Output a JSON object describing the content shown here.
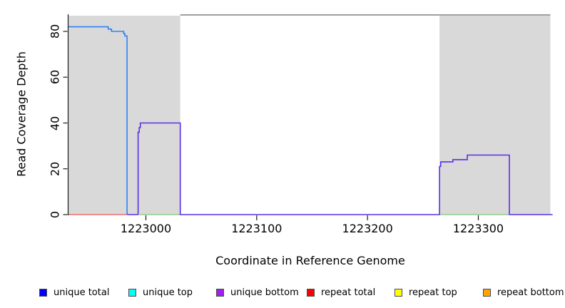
{
  "figure": {
    "xlabel": "Coordinate in Reference Genome",
    "ylabel": "Read Coverage Depth"
  },
  "chart_data": {
    "type": "line",
    "subtype": "step-coverage",
    "title": "",
    "xlabel": "Coordinate in Reference Genome",
    "ylabel": "Read Coverage Depth",
    "xlim": [
      1222930,
      1223367
    ],
    "ylim": [
      0,
      87.5
    ],
    "grid": false,
    "x_ticks": [
      {
        "value": 1223000,
        "label": "1223000"
      },
      {
        "value": 1223100,
        "label": "1223100"
      },
      {
        "value": 1223200,
        "label": "1223200"
      },
      {
        "value": 1223300,
        "label": "1223300"
      }
    ],
    "y_ticks": [
      {
        "value": 0,
        "label": "0"
      },
      {
        "value": 20,
        "label": "20"
      },
      {
        "value": 40,
        "label": "40"
      },
      {
        "value": 60,
        "label": "60"
      },
      {
        "value": 80,
        "label": "80"
      }
    ],
    "shaded_regions": [
      {
        "name": "left-gray-region",
        "x1": 1222930,
        "x2": 1223031,
        "color": "#d9d9d9"
      },
      {
        "name": "right-gray-region",
        "x1": 1223265,
        "x2": 1223365,
        "color": "#d9d9d9"
      }
    ],
    "series": [
      {
        "name": "top-clip-bar-gray",
        "color": "#8a8a8a",
        "width": 1.6,
        "points": [
          [
            1223031,
            87.2
          ],
          [
            1223365,
            87.2
          ]
        ]
      },
      {
        "name": "repeat-total-baseline-red",
        "color": "#f05555",
        "width": 1.2,
        "points": [
          [
            1222930,
            0
          ],
          [
            1222983,
            0
          ]
        ]
      },
      {
        "name": "baseline-green-left",
        "color": "#7cc87c",
        "width": 1.2,
        "points": [
          [
            1222994,
            0
          ],
          [
            1223031,
            0
          ]
        ]
      },
      {
        "name": "baseline-green-right",
        "color": "#7cc87c",
        "width": 1.2,
        "points": [
          [
            1223265,
            0
          ],
          [
            1223328,
            0
          ]
        ]
      },
      {
        "name": "unique-coverage-blue",
        "color": "#2d82f7",
        "width": 1.6,
        "points": [
          [
            1222930,
            82
          ],
          [
            1222966,
            82
          ],
          [
            1222966,
            81
          ],
          [
            1222969,
            81
          ],
          [
            1222969,
            80
          ],
          [
            1222980,
            80
          ],
          [
            1222980,
            79
          ],
          [
            1222981,
            79
          ],
          [
            1222981,
            78
          ],
          [
            1222983,
            78
          ],
          [
            1222983,
            0
          ]
        ]
      },
      {
        "name": "unique-bottom-purple",
        "color": "#5b2ee8",
        "width": 1.6,
        "points": [
          [
            1222983,
            0
          ],
          [
            1222993,
            0
          ],
          [
            1222993,
            36
          ],
          [
            1222994,
            36
          ],
          [
            1222994,
            38
          ],
          [
            1222995,
            38
          ],
          [
            1222995,
            40
          ],
          [
            1223031,
            40
          ],
          [
            1223031,
            0
          ],
          [
            1223265,
            0
          ],
          [
            1223265,
            21
          ],
          [
            1223266,
            21
          ],
          [
            1223266,
            23
          ],
          [
            1223277,
            23
          ],
          [
            1223277,
            24
          ],
          [
            1223290,
            24
          ],
          [
            1223290,
            26
          ],
          [
            1223328,
            26
          ],
          [
            1223328,
            0
          ],
          [
            1223367,
            0
          ]
        ]
      }
    ],
    "legend": {
      "position": "bottom",
      "entries": [
        {
          "label": "unique total",
          "color": "#0000ff"
        },
        {
          "label": "unique top",
          "color": "#00ffff"
        },
        {
          "label": "unique bottom",
          "color": "#a020f0"
        },
        {
          "label": "repeat total",
          "color": "#ff0000"
        },
        {
          "label": "repeat top",
          "color": "#ffff00"
        },
        {
          "label": "repeat bottom",
          "color": "#ffa500"
        }
      ]
    }
  }
}
